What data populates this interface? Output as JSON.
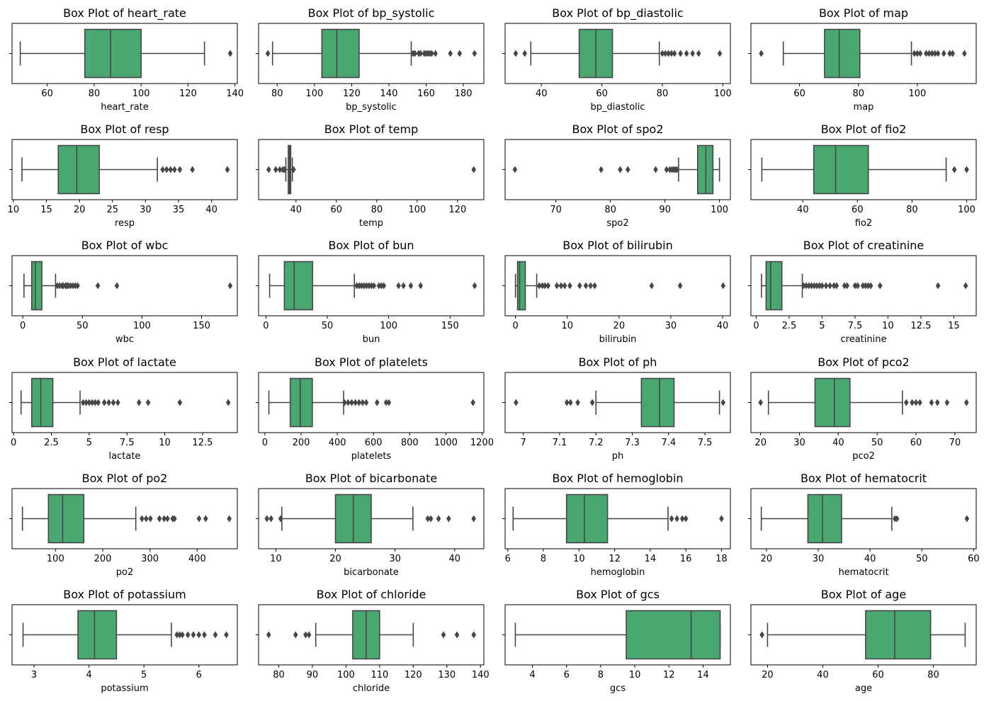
{
  "colors": {
    "box_fill": "#4aa772",
    "line": "#464646",
    "axes": "#000000"
  },
  "chart_data": [
    {
      "type": "box",
      "title": "Box Plot of heart_rate",
      "xlabel": "heart_rate",
      "xlim": [
        45,
        141
      ],
      "ticks": [
        60,
        80,
        100,
        120,
        140
      ],
      "box": {
        "whislo": 48.5,
        "q1": 76,
        "med": 87,
        "q3": 100,
        "whishi": 127
      },
      "fliers": [
        138
      ]
    },
    {
      "type": "box",
      "title": "Box Plot of bp_systolic",
      "xlabel": "bp_systolic",
      "xlim": [
        70,
        191
      ],
      "ticks": [
        80,
        100,
        120,
        140,
        160,
        180
      ],
      "box": {
        "whislo": 77.5,
        "q1": 104,
        "med": 112,
        "q3": 124,
        "whishi": 152
      },
      "fliers": [
        75,
        153,
        154,
        156,
        157,
        159,
        160,
        161,
        162,
        163,
        165,
        173,
        178,
        186
      ]
    },
    {
      "type": "box",
      "title": "Box Plot of bp_diastolic",
      "xlabel": "bp_diastolic",
      "xlim": [
        28,
        102.5
      ],
      "ticks": [
        40,
        60,
        80,
        100
      ],
      "box": {
        "whislo": 36.5,
        "q1": 52.5,
        "med": 58,
        "q3": 63.5,
        "whishi": 79
      },
      "fliers": [
        31.5,
        34.5,
        80,
        81,
        82,
        83,
        84,
        86,
        88,
        90,
        92,
        99
      ]
    },
    {
      "type": "box",
      "title": "Box Plot of map",
      "xlabel": "map",
      "xlim": [
        43.5,
        120
      ],
      "ticks": [
        60,
        80,
        100
      ],
      "box": {
        "whislo": 54.5,
        "q1": 68.5,
        "med": 73.5,
        "q3": 80.5,
        "whishi": 98
      },
      "fliers": [
        47,
        99,
        100,
        101,
        103,
        104,
        105,
        106,
        107,
        109,
        111,
        112,
        116
      ]
    },
    {
      "type": "box",
      "title": "Box Plot of resp",
      "xlabel": "resp",
      "xlim": [
        9.8,
        43.9
      ],
      "ticks": [
        10,
        15,
        20,
        25,
        30,
        35,
        40
      ],
      "box": {
        "whislo": 11.3,
        "q1": 16.8,
        "med": 19.6,
        "q3": 23,
        "whishi": 31.8
      },
      "fliers": [
        32.6,
        33.2,
        33.8,
        34.4,
        35.2,
        37.1,
        42.4
      ]
    },
    {
      "type": "box",
      "title": "Box Plot of temp",
      "xlabel": "temp",
      "xlim": [
        21.5,
        133
      ],
      "ticks": [
        40,
        60,
        80,
        100,
        120
      ],
      "box": {
        "whislo": 35,
        "q1": 36.2,
        "med": 36.8,
        "q3": 37.4,
        "whishi": 38.2
      },
      "fliers": [
        26.5,
        30,
        32,
        33.5,
        34.3,
        38.8,
        128
      ]
    },
    {
      "type": "box",
      "title": "Box Plot of spo2",
      "xlabel": "spo2",
      "xlim": [
        60.7,
        102
      ],
      "ticks": [
        70,
        80,
        90,
        100
      ],
      "box": {
        "whislo": 92.5,
        "q1": 96,
        "med": 97.5,
        "q3": 98.8,
        "whishi": 100
      },
      "fliers": [
        62.5,
        78.3,
        81.8,
        83.2,
        88.3,
        90.3,
        90.9,
        91.3,
        91.6,
        91.9,
        92.2
      ]
    },
    {
      "type": "box",
      "title": "Box Plot of fio2",
      "xlabel": "fio2",
      "xlim": [
        21,
        103.5
      ],
      "ticks": [
        40,
        60,
        80,
        100
      ],
      "box": {
        "whislo": 25,
        "q1": 44,
        "med": 52,
        "q3": 64,
        "whishi": 92.5
      },
      "fliers": [
        95.5,
        100
      ]
    },
    {
      "type": "box",
      "title": "Box Plot of wbc",
      "xlabel": "wbc",
      "xlim": [
        -9,
        180
      ],
      "ticks": [
        0,
        50,
        100,
        150
      ],
      "box": {
        "whislo": 1,
        "q1": 7.5,
        "med": 10.5,
        "q3": 16,
        "whishi": 27.5
      },
      "fliers": [
        29,
        31,
        33,
        34,
        36,
        37,
        38,
        40,
        42,
        44,
        46,
        63,
        79,
        174
      ]
    },
    {
      "type": "box",
      "title": "Box Plot of bun",
      "xlabel": "bun",
      "xlim": [
        -6,
        177.5
      ],
      "ticks": [
        0,
        50,
        100,
        150
      ],
      "box": {
        "whislo": 3,
        "q1": 15,
        "med": 23,
        "q3": 38,
        "whishi": 72
      },
      "fliers": [
        74,
        76,
        78,
        80,
        82,
        84,
        86,
        88,
        92,
        94,
        96,
        108,
        112,
        118,
        126,
        170
      ]
    },
    {
      "type": "box",
      "title": "Box Plot of bilirubin",
      "xlabel": "bilirubin",
      "xlim": [
        -2,
        41.5
      ],
      "ticks": [
        0,
        10,
        20,
        30,
        40
      ],
      "box": {
        "whislo": 0,
        "q1": 0.4,
        "med": 0.8,
        "q3": 1.9,
        "whishi": 4.1
      },
      "fliers": [
        4.6,
        5.2,
        5.7,
        6.3,
        8,
        8.8,
        9.5,
        10.5,
        12.4,
        13.6,
        14.5,
        15.3,
        26.3,
        31.8,
        40.1
      ]
    },
    {
      "type": "box",
      "title": "Box Plot of creatinine",
      "xlabel": "creatinine",
      "xlim": [
        -0.4,
        16.7
      ],
      "ticks": [
        0,
        2.5,
        5,
        7.5,
        10,
        12.5,
        15
      ],
      "box": {
        "whislo": 0.4,
        "q1": 0.75,
        "med": 1.1,
        "q3": 1.95,
        "whishi": 3.5
      },
      "fliers": [
        3.6,
        3.8,
        4,
        4.2,
        4.4,
        4.6,
        4.8,
        5,
        5.3,
        5.6,
        5.9,
        6.1,
        6.7,
        6.9,
        7.5,
        7.7,
        8.1,
        8.3,
        8.5,
        8.7,
        9.4,
        13.8,
        15.9
      ]
    },
    {
      "type": "box",
      "title": "Box Plot of lactate",
      "xlabel": "lactate",
      "xlim": [
        -0.1,
        14.8
      ],
      "ticks": [
        0,
        2.5,
        5,
        7.5,
        10,
        12.5
      ],
      "box": {
        "whislo": 0.5,
        "q1": 1.2,
        "med": 1.8,
        "q3": 2.6,
        "whishi": 4.4
      },
      "fliers": [
        4.6,
        4.8,
        5,
        5.2,
        5.4,
        5.6,
        6,
        6.3,
        6.6,
        6.9,
        8.3,
        8.9,
        11,
        14.2
      ]
    },
    {
      "type": "box",
      "title": "Box Plot of platelets",
      "xlabel": "platelets",
      "xlim": [
        -35,
        1210
      ],
      "ticks": [
        0,
        200,
        400,
        600,
        800,
        1000,
        1200
      ],
      "box": {
        "whislo": 22,
        "q1": 140,
        "med": 195,
        "q3": 262,
        "whishi": 435
      },
      "fliers": [
        440,
        460,
        480,
        500,
        520,
        540,
        560,
        620,
        670,
        685,
        1150
      ]
    },
    {
      "type": "box",
      "title": "Box Plot of ph",
      "xlabel": "ph",
      "xlim": [
        6.95,
        7.57
      ],
      "ticks": [
        7,
        7.1,
        7.2,
        7.3,
        7.4,
        7.5
      ],
      "box": {
        "whislo": 7.2,
        "q1": 7.325,
        "med": 7.375,
        "q3": 7.415,
        "whishi": 7.54
      },
      "fliers": [
        6.98,
        7.12,
        7.13,
        7.15,
        7.19,
        7.55
      ]
    },
    {
      "type": "box",
      "title": "Box Plot of pco2",
      "xlabel": "pco2",
      "xlim": [
        17.5,
        75.5
      ],
      "ticks": [
        20,
        30,
        40,
        50,
        60,
        70
      ],
      "box": {
        "whislo": 22,
        "q1": 34,
        "med": 39,
        "q3": 43,
        "whishi": 56.5
      },
      "fliers": [
        20,
        57.5,
        59,
        60,
        61,
        64,
        65.5,
        68,
        73
      ]
    },
    {
      "type": "box",
      "title": "Box Plot of po2",
      "xlabel": "po2",
      "xlim": [
        8,
        485
      ],
      "ticks": [
        100,
        200,
        300,
        400
      ],
      "box": {
        "whislo": 30,
        "q1": 85,
        "med": 115,
        "q3": 160,
        "whishi": 270
      },
      "fliers": [
        283,
        292,
        301,
        320,
        330,
        337,
        348,
        352,
        404,
        418,
        468
      ]
    },
    {
      "type": "box",
      "title": "Box Plot of bicarbonate",
      "xlabel": "bicarbonate",
      "xlim": [
        7.1,
        44.9
      ],
      "ticks": [
        10,
        20,
        30,
        40
      ],
      "box": {
        "whislo": 11,
        "q1": 20,
        "med": 23,
        "q3": 26,
        "whishi": 33
      },
      "fliers": [
        8.5,
        9.2,
        10.8,
        35.5,
        36,
        37.3,
        39,
        43.2
      ]
    },
    {
      "type": "box",
      "title": "Box Plot of hemoglobin",
      "xlabel": "hemoglobin",
      "xlim": [
        5.85,
        18.5
      ],
      "ticks": [
        6,
        8,
        10,
        12,
        14,
        16,
        18
      ],
      "box": {
        "whislo": 6.3,
        "q1": 9.3,
        "med": 10.3,
        "q3": 11.6,
        "whishi": 15
      },
      "fliers": [
        15.2,
        15.5,
        15.8,
        16,
        18
      ]
    },
    {
      "type": "box",
      "title": "Box Plot of hematocrit",
      "xlabel": "hematocrit",
      "xlim": [
        17,
        60.5
      ],
      "ticks": [
        20,
        30,
        40,
        50,
        60
      ],
      "box": {
        "whislo": 19,
        "q1": 28,
        "med": 30.8,
        "q3": 34.5,
        "whishi": 44.2
      },
      "fliers": [
        44.8,
        45.2,
        58.7
      ]
    },
    {
      "type": "box",
      "title": "Box Plot of potassium",
      "xlabel": "potassium",
      "xlim": [
        2.6,
        6.7
      ],
      "ticks": [
        3,
        4,
        5,
        6
      ],
      "box": {
        "whislo": 2.8,
        "q1": 3.8,
        "med": 4.1,
        "q3": 4.5,
        "whishi": 5.5
      },
      "fliers": [
        5.6,
        5.65,
        5.7,
        5.8,
        5.9,
        6,
        6.1,
        6.3,
        6.5
      ]
    },
    {
      "type": "box",
      "title": "Box Plot of chloride",
      "xlabel": "chloride",
      "xlim": [
        74,
        141
      ],
      "ticks": [
        80,
        90,
        100,
        110,
        120,
        130,
        140
      ],
      "box": {
        "whislo": 91,
        "q1": 102,
        "med": 106,
        "q3": 110,
        "whishi": 120
      },
      "fliers": [
        77,
        85,
        88,
        89,
        129,
        133,
        138
      ]
    },
    {
      "type": "box",
      "title": "Box Plot of gcs",
      "xlabel": "gcs",
      "xlim": [
        2.4,
        15.6
      ],
      "ticks": [
        4,
        6,
        8,
        10,
        12,
        14
      ],
      "box": {
        "whislo": 3,
        "q1": 9.5,
        "med": 13.3,
        "q3": 15,
        "whishi": 15
      },
      "fliers": []
    },
    {
      "type": "box",
      "title": "Box Plot of age",
      "xlabel": "age",
      "xlim": [
        14,
        95.5
      ],
      "ticks": [
        20,
        40,
        60,
        80
      ],
      "box": {
        "whislo": 20,
        "q1": 55.5,
        "med": 66,
        "q3": 79,
        "whishi": 91.5
      },
      "fliers": [
        18
      ]
    }
  ]
}
